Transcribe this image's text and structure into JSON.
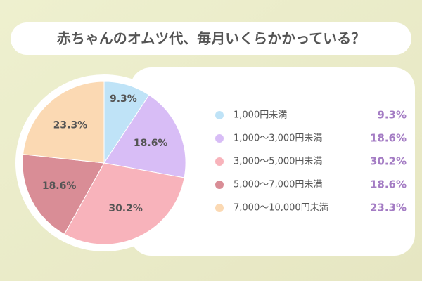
{
  "chart_data": {
    "type": "pie",
    "title": "赤ちゃんのオムツ代、毎月いくらかかっている？",
    "categories": [
      "1,000円未満",
      "1,000〜3,000円未満",
      "3,000〜5,000円未満",
      "5,000〜7,000円未満",
      "7,000〜10,000円未満"
    ],
    "values": [
      9.3,
      18.6,
      30.2,
      18.6,
      23.3
    ],
    "value_labels": [
      "9.3%",
      "18.6%",
      "30.2%",
      "18.6%",
      "23.3%"
    ],
    "colors": [
      "#bfe3f7",
      "#d8bdf6",
      "#f8b3bb",
      "#d98d96",
      "#fbd9b3"
    ]
  }
}
